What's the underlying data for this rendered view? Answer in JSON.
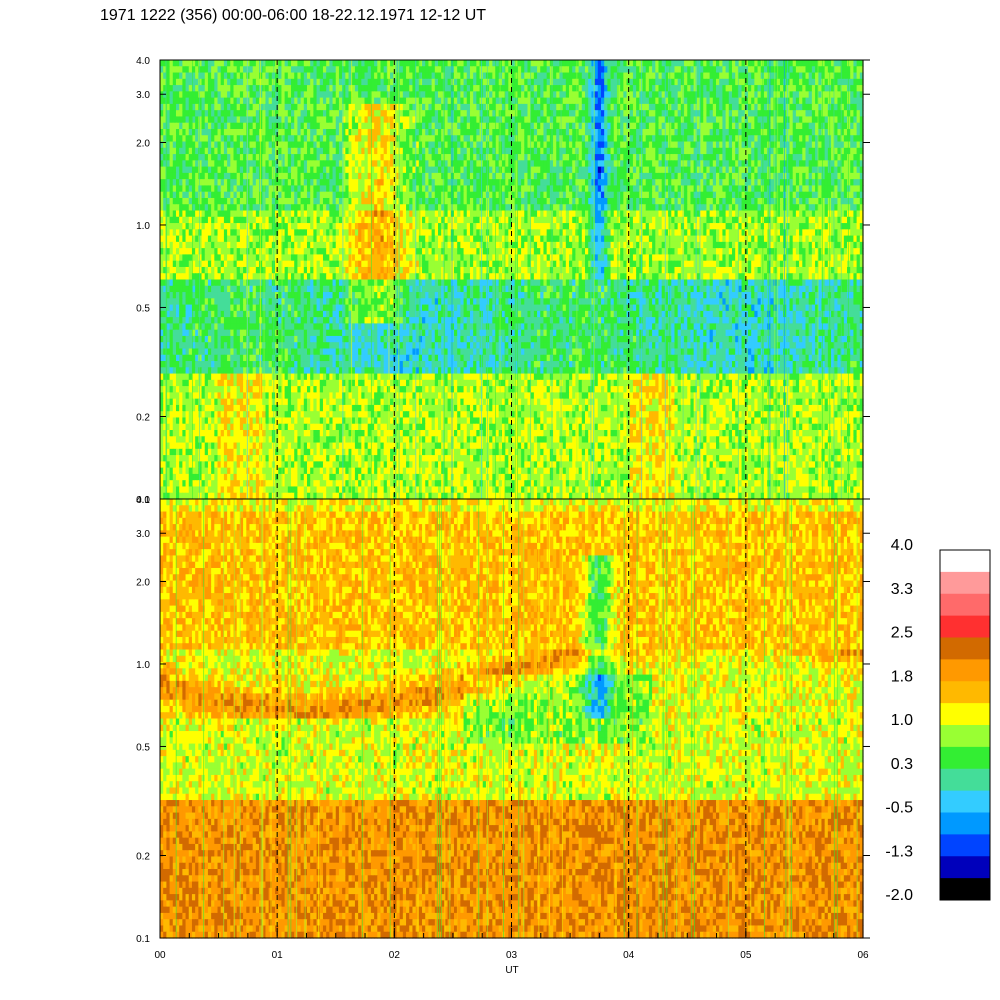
{
  "chart_data": {
    "type": "heatmap",
    "title": "1971 1222 (356) 00:00-06:00 18-22.12.1971  12-12 UT",
    "xlabel": "UT",
    "x_ticks": [
      "00",
      "01",
      "02",
      "03",
      "04",
      "05",
      "06"
    ],
    "xlim": [
      0,
      6
    ],
    "y_scale": "log",
    "ylim": [
      0.1,
      4.0
    ],
    "panels": [
      {
        "name": "upper",
        "y_ticks": [
          "0.1",
          "0.2",
          "0.5",
          "1.0",
          "2.0",
          "3.0",
          "4.0"
        ],
        "y_tick_values": [
          0.1,
          0.2,
          0.5,
          1.0,
          2.0,
          3.0,
          4.0
        ]
      },
      {
        "name": "lower",
        "y_ticks": [
          "0.1",
          "0.2",
          "0.5",
          "1.0",
          "2.0",
          "3.0",
          "4.0"
        ],
        "y_tick_values": [
          0.1,
          0.2,
          0.5,
          1.0,
          2.0,
          3.0,
          4.0
        ]
      }
    ],
    "hour_grid": "dashed",
    "colorbar": {
      "labels": [
        "4.0",
        "3.3",
        "2.5",
        "1.8",
        "1.0",
        "0.3",
        "-0.5",
        "-1.3",
        "-2.0"
      ],
      "range": [
        -2.0,
        4.0
      ],
      "colors": [
        "#ffffff",
        "#ff9a9a",
        "#ff6a6a",
        "#ff3030",
        "#d26a00",
        "#ff9900",
        "#ffb900",
        "#ffff00",
        "#99ff33",
        "#33ee33",
        "#44dd99",
        "#33ccff",
        "#0099ff",
        "#0044ff",
        "#0000bb",
        "#000000"
      ]
    }
  }
}
